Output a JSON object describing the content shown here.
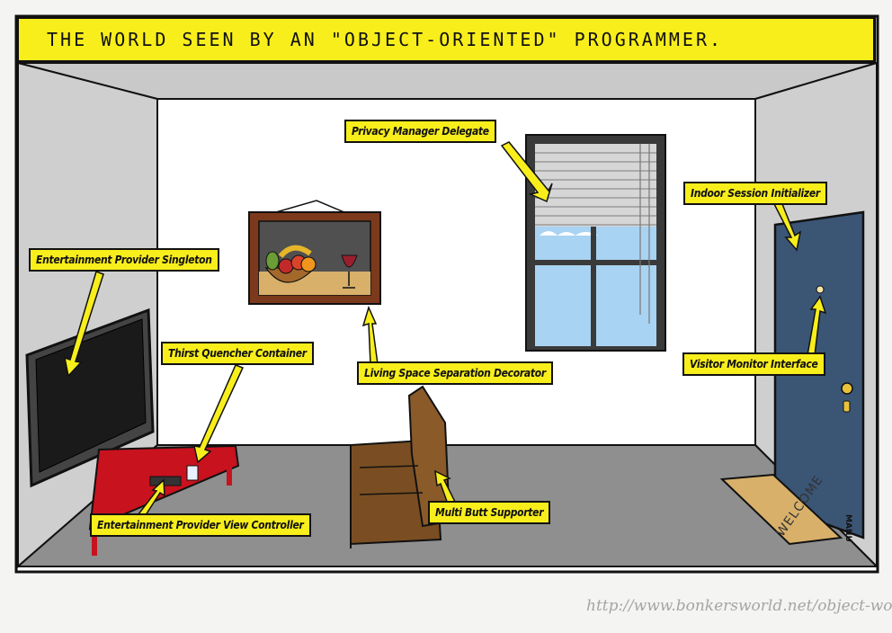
{
  "title": "THE WORLD SEEN BY AN \"OBJECT-ORIENTED\" PROGRAMMER.",
  "labels": {
    "privacy": "Privacy Manager Delegate",
    "indoor": "Indoor Session Initializer",
    "entertainment_singleton": "Entertainment Provider Singleton",
    "thirst": "Thirst Quencher Container",
    "living_space": "Living Space Separation Decorator",
    "visitor": "Visitor Monitor Interface",
    "view_controller": "Entertainment Provider View Controller",
    "multi_butt": "Multi Butt Supporter"
  },
  "doormat": "WELCOME",
  "signature": "MANU",
  "credit_url": "http://www.bonkersworld.net/object-world/",
  "colors": {
    "label_yellow": "#f8ee1c",
    "table_red": "#c8121e",
    "sofa_brown": "#7a4e22",
    "door_blue": "#3b5575",
    "sky_blue": "#a9d3f2",
    "floor_gray": "#8f8f8f"
  }
}
